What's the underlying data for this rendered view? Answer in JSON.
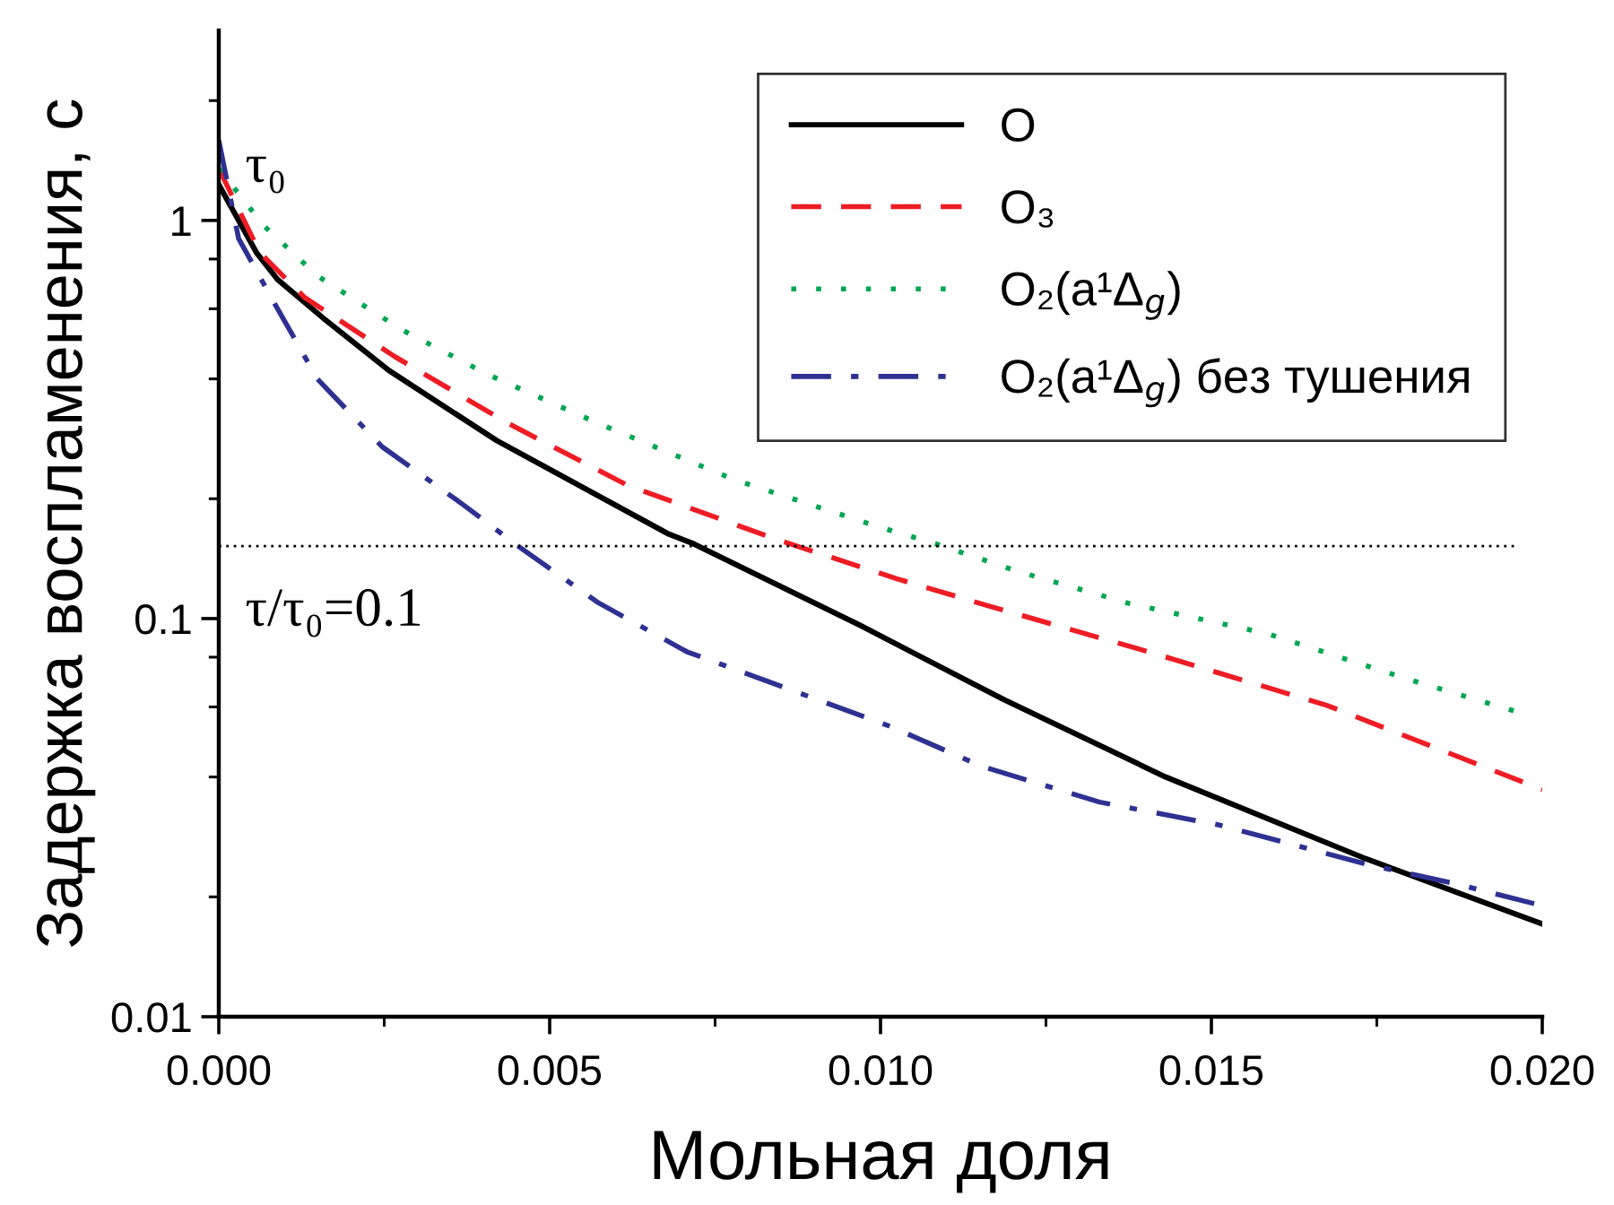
{
  "chart_data": {
    "type": "line",
    "xlabel": "Мольная доля",
    "ylabel": "Задержка воспламенения, с",
    "log": "y",
    "xlim": [
      0,
      0.02
    ],
    "ylim": [
      0.01,
      3
    ],
    "xticks": [
      {
        "value": 0,
        "label": "0.000"
      },
      {
        "value": 0.0025,
        "label": null
      },
      {
        "value": 0.005,
        "label": "0.005"
      },
      {
        "value": 0.0075,
        "label": null
      },
      {
        "value": 0.01,
        "label": "0.010"
      },
      {
        "value": 0.0125,
        "label": null
      },
      {
        "value": 0.015,
        "label": "0.015"
      },
      {
        "value": 0.0175,
        "label": null
      },
      {
        "value": 0.02,
        "label": "0.020"
      }
    ],
    "yticks": [
      {
        "value": 0.01,
        "label": "0.01"
      },
      {
        "value": 0.02,
        "label": null
      },
      {
        "value": 0.04,
        "label": null
      },
      {
        "value": 0.06,
        "label": null
      },
      {
        "value": 0.08,
        "label": null
      },
      0.1,
      {
        "value": 0.2,
        "label": null
      },
      {
        "value": 0.4,
        "label": null
      },
      {
        "value": 0.6,
        "label": null
      },
      {
        "value": 0.8,
        "label": null
      },
      1,
      {
        "value": 2,
        "label": null
      }
    ],
    "grid": false,
    "legend": "top right",
    "marker": "none",
    "ref_lines": [
      {
        "axis": "y",
        "value": 0.152,
        "color": "#000000",
        "line_style": "dotted"
      }
    ],
    "annotations": [
      "τ₀",
      "τ/τ₀=0.1"
    ],
    "series": [
      {
        "name": "O",
        "color": "#000000",
        "line_style": "solid",
        "x": [
          0,
          0.00057,
          0.00089,
          0.00157,
          0.00257,
          0.0042,
          0.0068,
          0.00718,
          0.0097,
          0.01187,
          0.01431,
          0.01729,
          0.02
        ],
        "values": [
          1.23,
          0.83,
          0.71,
          0.57,
          0.42,
          0.28,
          0.163,
          0.154,
          0.096,
          0.0625,
          0.04,
          0.0251,
          0.0171
        ]
      },
      {
        "name": "O₃",
        "color": "#ee1c24",
        "line_style": "dashed",
        "x": [
          0,
          0.00062,
          0.0013,
          0.00266,
          0.00436,
          0.00618,
          0.00843,
          0.01024,
          0.0116,
          0.01404,
          0.01675,
          0.02
        ],
        "values": [
          1.35,
          0.83,
          0.64,
          0.455,
          0.31,
          0.216,
          0.158,
          0.126,
          0.108,
          0.0826,
          0.0605,
          0.0372
        ]
      },
      {
        "name": "O₂(a¹Δ$_{g}$)",
        "color": "#00a651",
        "line_style": "dotted",
        "x": [
          0,
          0.00068,
          0.00149,
          0.00276,
          0.00407,
          0.00572,
          0.0078,
          0.00997,
          0.01079,
          0.01206,
          0.01377,
          0.01585,
          0.01802,
          0.01967
        ],
        "values": [
          1.35,
          0.97,
          0.726,
          0.532,
          0.41,
          0.31,
          0.223,
          0.17,
          0.155,
          0.1316,
          0.109,
          0.0916,
          0.07,
          0.058
        ]
      },
      {
        "name": "O₂(a¹Δ$_{g}$) без тушения",
        "color": "#2e3192",
        "line_style": "dashdot",
        "x": [
          0,
          0.0003,
          0.00084,
          0.00149,
          0.00247,
          0.00366,
          0.00455,
          0.00572,
          0.00707,
          0.01016,
          0.01152,
          0.01331,
          0.01512,
          0.01737,
          0.01873,
          0.02
        ],
        "values": [
          1.59,
          0.9,
          0.62,
          0.4,
          0.27,
          0.195,
          0.151,
          0.11,
          0.0826,
          0.0535,
          0.0426,
          0.0346,
          0.0303,
          0.0241,
          0.0215,
          0.019
        ]
      }
    ]
  }
}
